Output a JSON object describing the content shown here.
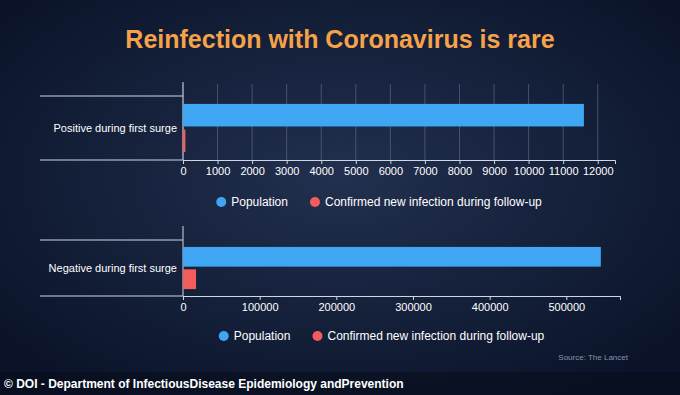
{
  "title": "Reinfection with Coronavirus is rare",
  "source": "Source: The Lancet",
  "credit": "© DOI - Department of InfectiousDisease Epidemiology andPrevention",
  "chart_data": [
    {
      "type": "bar",
      "orientation": "horizontal",
      "categories": [
        "Positive during first surge"
      ],
      "series": [
        {
          "name": "Population",
          "color": "#3ea6f2",
          "values": [
            11600
          ]
        },
        {
          "name": "Confirmed new infection during follow-up",
          "color": "#f25c5c",
          "values": [
            70
          ]
        }
      ],
      "xlim": [
        0,
        12500
      ],
      "xticks": [
        0,
        1000,
        2000,
        3000,
        4000,
        5000,
        6000,
        7000,
        8000,
        9000,
        10000,
        11000,
        12000
      ],
      "grid": true,
      "legend": "bottom"
    },
    {
      "type": "bar",
      "orientation": "horizontal",
      "categories": [
        "Negative during first surge"
      ],
      "series": [
        {
          "name": "Population",
          "color": "#3ea6f2",
          "values": [
            545000
          ]
        },
        {
          "name": "Confirmed new infection during follow-up",
          "color": "#f25c5c",
          "values": [
            17000
          ]
        }
      ],
      "xlim": [
        0,
        570000
      ],
      "xticks": [
        0,
        100000,
        200000,
        300000,
        400000,
        500000
      ],
      "grid": false,
      "legend": "bottom"
    }
  ]
}
